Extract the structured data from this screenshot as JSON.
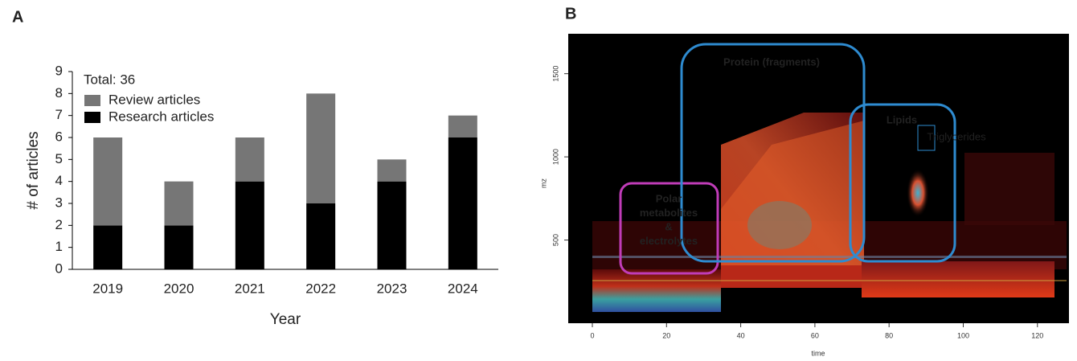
{
  "chart_data": [
    {
      "type": "bar",
      "panel": "A",
      "annotation": "Total: 36",
      "categories": [
        "2019",
        "2020",
        "2021",
        "2022",
        "2023",
        "2024"
      ],
      "series": [
        {
          "name": "Research articles",
          "color": "#000000",
          "values": [
            2,
            2,
            4,
            3,
            4,
            6
          ]
        },
        {
          "name": "Review articles",
          "color": "#767676",
          "values": [
            4,
            2,
            2,
            5,
            1,
            1
          ]
        }
      ],
      "stacked": true,
      "xlabel": "Year",
      "ylabel": "# of articles",
      "ylim": [
        0,
        9
      ],
      "yticks": [
        0,
        1,
        2,
        3,
        4,
        5,
        6,
        7,
        8,
        9
      ]
    },
    {
      "type": "spectrogram",
      "panel": "B",
      "xlabel": "time",
      "ylabel": "mz",
      "xlim": [
        -6.5,
        128.5
      ],
      "xticks": [
        0,
        20,
        40,
        60,
        80,
        100,
        120
      ],
      "ylim": [
        0,
        1740
      ],
      "yticks": [
        500,
        1000,
        1500
      ],
      "annotations": {
        "protein": "Protein (fragments)",
        "lipids": "Lipids",
        "triglycerides": "Triglycerides",
        "polar": [
          "Polar",
          "metabolites",
          "&",
          "electrolytes"
        ]
      }
    }
  ]
}
